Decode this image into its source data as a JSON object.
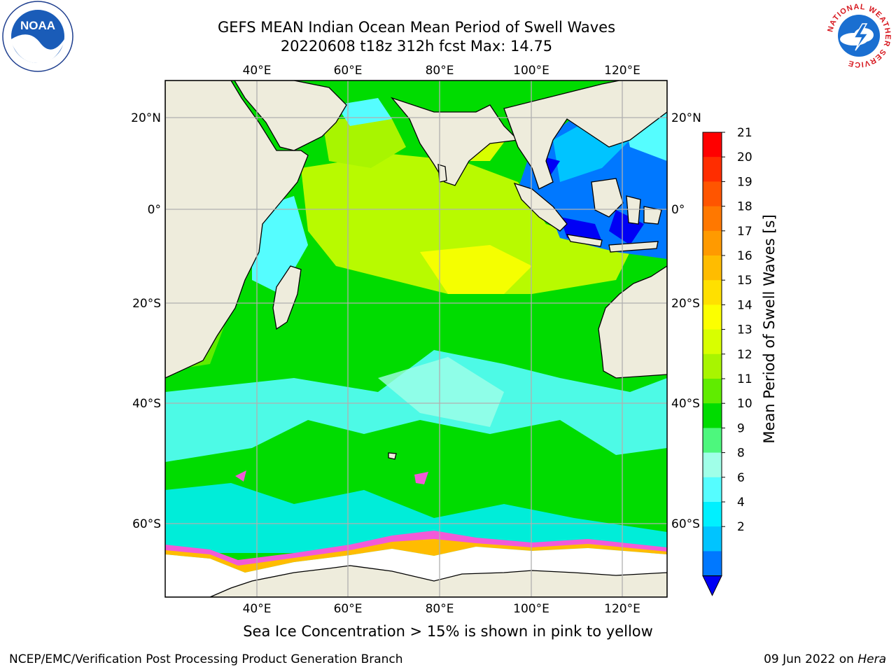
{
  "header": {
    "title_line1": "GEFS MEAN Indian Ocean Mean Period of Swell Waves",
    "title_line2": "20220608 t18z 312h fcst   Max: 14.75"
  },
  "logos": {
    "left": "noaa-logo",
    "right": "national-weather-service-logo",
    "nws_ring_text": "NATIONAL WEATHER SERVICE"
  },
  "map": {
    "lon_range": [
      20,
      130
    ],
    "lat_range": [
      -73,
      28
    ],
    "top_lon_labels": [
      "40°E",
      "60°E",
      "80°E",
      "100°E",
      "120°E"
    ],
    "bottom_lon_labels": [
      "40°E",
      "60°E",
      "80°E",
      "100°E",
      "120°E"
    ],
    "left_lat_labels": [
      "20°N",
      "0°",
      "20°S",
      "40°S",
      "60°S"
    ],
    "right_lat_labels": [
      "20°N",
      "0°",
      "20°S",
      "40°S",
      "60°S"
    ],
    "land_color": "#eeecdc",
    "grid_color": "#b0b0b0"
  },
  "colorbar": {
    "label": "Mean Period of Swell Waves [s]",
    "ticks": [
      "21",
      "20",
      "19",
      "18",
      "17",
      "16",
      "15",
      "14",
      "13",
      "12",
      "11",
      "10",
      "9",
      "8",
      "6",
      "4",
      "2"
    ],
    "colors": [
      "#ff0000",
      "#ff2d00",
      "#ff5500",
      "#ff7800",
      "#ff9a00",
      "#ffbc00",
      "#ffe000",
      "#fcff00",
      "#d8ff00",
      "#a8f500",
      "#60ec00",
      "#00dc00",
      "#4df77d",
      "#a0ffe8",
      "#55fdff",
      "#00f0ff",
      "#00c4ff",
      "#0078ff"
    ],
    "extend_color": "#0000f5"
  },
  "caption": "Sea Ice Concentration > 15% is shown in pink to yellow",
  "footer": {
    "left": "NCEP/EMC/Verification Post Processing Product Generation Branch",
    "date": "09 Jun 2022 on ",
    "host": "Hera"
  }
}
